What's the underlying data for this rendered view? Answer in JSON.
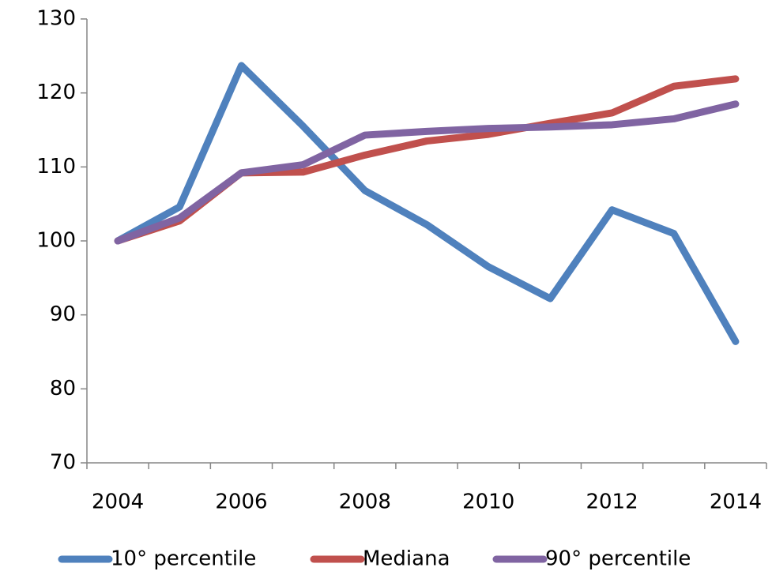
{
  "chart_data": {
    "type": "line",
    "categories": [
      "2004",
      null,
      "2006",
      null,
      "2008",
      null,
      "2010",
      null,
      "2012",
      null,
      "2014"
    ],
    "series": [
      {
        "name": "10° percentile",
        "color": "#4f81bd",
        "values": [
          100,
          104.6,
          123.7,
          115.5,
          106.8,
          102.2,
          96.5,
          92.2,
          104.2,
          101,
          86.4
        ]
      },
      {
        "name": "Mediana",
        "color": "#c0504d",
        "values": [
          100,
          102.7,
          109.2,
          109.3,
          111.6,
          113.5,
          114.4,
          115.9,
          117.3,
          120.9,
          121.9
        ]
      },
      {
        "name": "90° percentile",
        "color": "#8064a2",
        "values": [
          100,
          103.1,
          109.2,
          110.3,
          114.3,
          114.8,
          115.2,
          115.4,
          115.7,
          116.5,
          118.5
        ]
      }
    ],
    "ylim": [
      70,
      130
    ],
    "yticks": [
      70,
      80,
      90,
      100,
      110,
      120,
      130
    ],
    "grid": false,
    "legend": "bottom"
  }
}
